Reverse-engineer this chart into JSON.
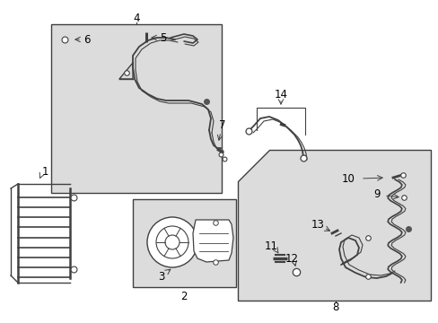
{
  "bg_color": "#ffffff",
  "diagram_bg": "#dcdcdc",
  "fig_width": 4.89,
  "fig_height": 3.6,
  "dpi": 100,
  "line_color": "#404040",
  "text_color": "#000000",
  "fs": 8.5
}
